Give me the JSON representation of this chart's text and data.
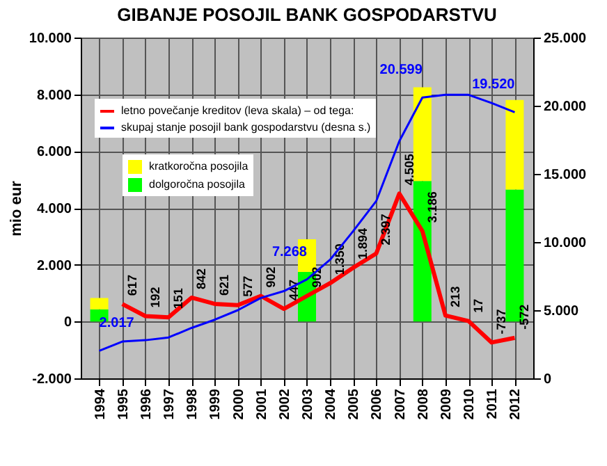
{
  "chart_data": {
    "type": "bar",
    "title": "GIBANJE POSOJIL BANK GOSPODARSTVU",
    "ylabel": "mio eur",
    "categories": [
      "1994",
      "1995",
      "1996",
      "1997",
      "1998",
      "1999",
      "2000",
      "2001",
      "2002",
      "2003",
      "2004",
      "2005",
      "2006",
      "2007",
      "2008",
      "2009",
      "2010",
      "2011",
      "2012"
    ],
    "stacked": true,
    "series": [
      {
        "name": "dolgoročna posojila",
        "color": "#00ff00",
        "values": [
          430,
          null,
          null,
          null,
          null,
          null,
          null,
          null,
          null,
          1750,
          null,
          null,
          null,
          null,
          4950,
          null,
          null,
          null,
          4650
        ]
      },
      {
        "name": "kratkoročna posojila",
        "color": "#ffff00",
        "values": [
          400,
          null,
          null,
          null,
          null,
          null,
          null,
          null,
          null,
          1150,
          null,
          null,
          null,
          null,
          3300,
          null,
          null,
          null,
          3150
        ]
      },
      {
        "name": "letno povečanje kreditov (leva skala) – od tega:",
        "type": "line",
        "color": "#ff0000",
        "values": [
          null,
          617,
          192,
          151,
          842,
          621,
          577,
          902,
          447,
          902,
          1350,
          1894,
          2397,
          4505,
          3186,
          213,
          17,
          -737,
          -572
        ],
        "value_labels": [
          null,
          "617",
          "192",
          "151",
          "842",
          "621",
          "577",
          "902",
          "447",
          "902",
          "1.350",
          "1.894",
          "2.397",
          "4.505",
          "3.186",
          "213",
          "17",
          "-737",
          "-572"
        ]
      },
      {
        "name": "skupaj stanje posojil bank gospodarstvu (desna s.)",
        "type": "line",
        "axis": "y2",
        "color": "#0000ff",
        "values": [
          2017,
          2700,
          2800,
          3000,
          3700,
          4300,
          5000,
          5900,
          6400,
          7268,
          8700,
          10800,
          13000,
          17400,
          20599,
          20800,
          20800,
          20200,
          19520
        ],
        "value_labels": [
          "2.017",
          null,
          null,
          null,
          null,
          null,
          null,
          null,
          null,
          "7.268",
          null,
          null,
          null,
          null,
          "20.599",
          null,
          null,
          null,
          "19.520"
        ]
      }
    ],
    "ylim": [
      -2000,
      10000
    ],
    "yticks": [
      {
        "value": -2000,
        "label": "-2.000"
      },
      0,
      {
        "value": 2000,
        "label": "2.000"
      },
      {
        "value": 4000,
        "label": "4.000"
      },
      {
        "value": 6000,
        "label": "6.000"
      },
      {
        "value": 8000,
        "label": "8.000"
      },
      {
        "value": 10000,
        "label": "10.000"
      }
    ],
    "y2lim": [
      0,
      25000
    ],
    "y2ticks": [
      0,
      {
        "value": 5000,
        "label": "5.000"
      },
      {
        "value": 10000,
        "label": "10.000"
      },
      {
        "value": 15000,
        "label": "15.000"
      },
      {
        "value": 20000,
        "label": "20.000"
      },
      {
        "value": 25000,
        "label": "25.000"
      }
    ],
    "grid": true,
    "legend": "top left"
  }
}
